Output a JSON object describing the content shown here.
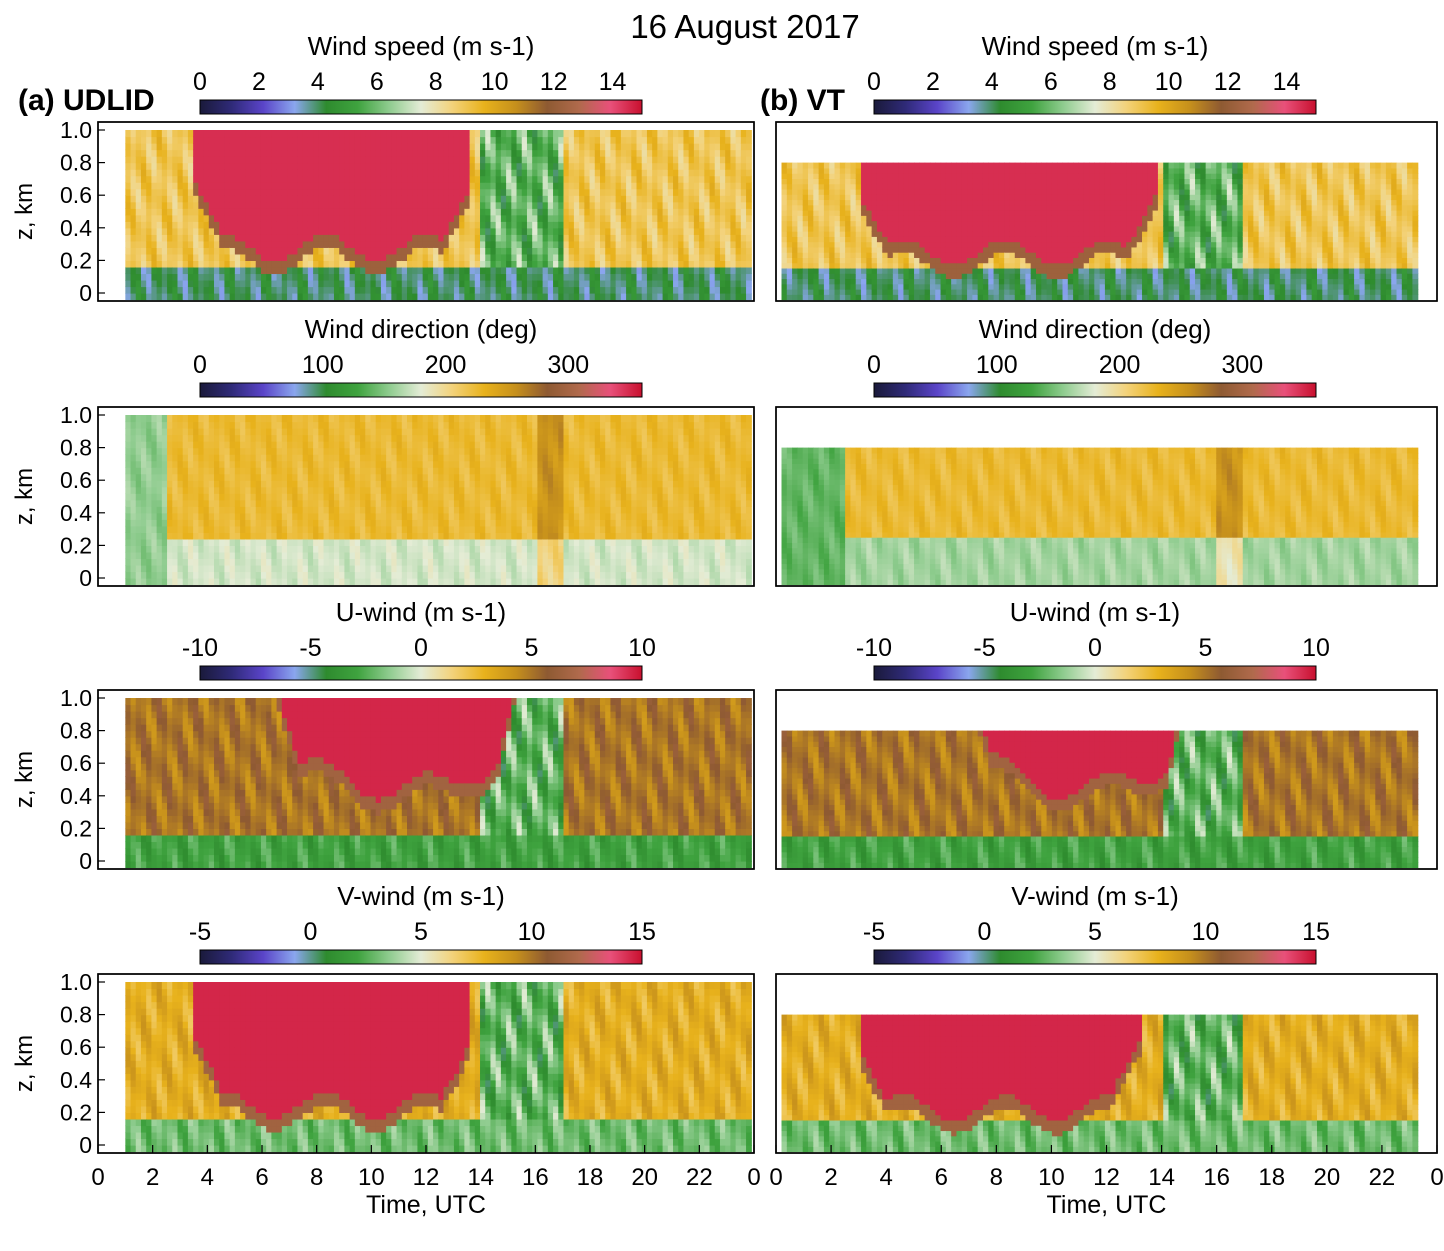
{
  "figure_title": "16 August 2017",
  "panel_labels": [
    "(a) UDLID",
    "(b) VT"
  ],
  "colorscale": [
    "#1a1a3a",
    "#2f2a78",
    "#5a44c8",
    "#8aa6ee",
    "#2e8b2e",
    "#3fa33f",
    "#8fcc8f",
    "#e4ecd6",
    "#f3d27a",
    "#e8b21c",
    "#c6901c",
    "#8e5a32",
    "#b06a4c",
    "#e8507a",
    "#c8102e"
  ],
  "chart_data": [
    {
      "type": "heatmap",
      "panel": "(a) UDLID",
      "variable": "Wind speed",
      "colorbar_label": "Wind speed (m s-1)",
      "colorbar_range": [
        0,
        15
      ],
      "colorbar_ticks": [
        "0",
        "2",
        "4",
        "6",
        "8",
        "10",
        "12",
        "14"
      ],
      "ylabel": "z, km",
      "yticks": [
        "1.0",
        "0.8",
        "0.6",
        "0.4",
        "0.2",
        "0"
      ],
      "ylim": [
        0,
        1.0
      ],
      "xlim": [
        0,
        24
      ],
      "data_xlim": [
        1,
        23.9
      ],
      "data_ztop": 1.0,
      "core": {
        "t_start": 3.5,
        "t_end": 13.6,
        "z_bottom": 0.28,
        "value": 14.5
      },
      "description_values": {
        "low_level_min": 4,
        "post_event_value": 9
      }
    },
    {
      "type": "heatmap",
      "panel": "(b) VT",
      "variable": "Wind speed",
      "colorbar_label": "Wind speed (m s-1)",
      "colorbar_range": [
        0,
        15
      ],
      "colorbar_ticks": [
        "0",
        "2",
        "4",
        "6",
        "8",
        "10",
        "12",
        "14"
      ],
      "ylim": [
        0,
        1.0
      ],
      "xlim": [
        0,
        24
      ],
      "data_xlim": [
        0.2,
        23.3
      ],
      "data_ztop": 0.8,
      "core": {
        "t_start": 3.0,
        "t_end": 13.8,
        "z_bottom": 0.25,
        "value": 14.5
      },
      "description_values": {
        "low_level_min": 4,
        "post_event_value": 9
      }
    },
    {
      "type": "heatmap",
      "panel": "(a) UDLID",
      "variable": "Wind direction",
      "colorbar_label": "Wind direction (deg)",
      "colorbar_range": [
        0,
        360
      ],
      "colorbar_ticks": [
        "0",
        "100",
        "200",
        "300"
      ],
      "ylabel": "z, km",
      "yticks": [
        "1.0",
        "0.8",
        "0.6",
        "0.4",
        "0.2",
        "0"
      ],
      "ylim": [
        0,
        1.0
      ],
      "xlim": [
        0,
        24
      ],
      "data_xlim": [
        1,
        23.9
      ],
      "data_ztop": 1.0,
      "description_values": {
        "low_level_value": 175,
        "upper_value": 225
      }
    },
    {
      "type": "heatmap",
      "panel": "(b) VT",
      "variable": "Wind direction",
      "colorbar_label": "Wind direction (deg)",
      "colorbar_range": [
        0,
        360
      ],
      "colorbar_ticks": [
        "0",
        "100",
        "200",
        "300"
      ],
      "ylim": [
        0,
        1.0
      ],
      "xlim": [
        0,
        24
      ],
      "data_xlim": [
        0.2,
        23.3
      ],
      "data_ztop": 0.8,
      "description_values": {
        "low_level_value": 160,
        "upper_value": 225
      }
    },
    {
      "type": "heatmap",
      "panel": "(a) UDLID",
      "variable": "U-wind",
      "colorbar_label": "U-wind (m s-1)",
      "colorbar_range": [
        -10,
        10
      ],
      "colorbar_ticks": [
        "-10",
        "-5",
        "0",
        "5",
        "10"
      ],
      "ylabel": "z, km",
      "yticks": [
        "1.0",
        "0.8",
        "0.6",
        "0.4",
        "0.2",
        "0"
      ],
      "ylim": [
        0,
        1.0
      ],
      "xlim": [
        0,
        24
      ],
      "data_xlim": [
        1,
        23.9
      ],
      "data_ztop": 1.0,
      "core": {
        "t_start": 6.5,
        "t_end": 15.5,
        "z_bottom": 0.45,
        "value": 9.5
      },
      "description_values": {
        "low_level_value": -3,
        "upper_value": 5
      }
    },
    {
      "type": "heatmap",
      "panel": "(b) VT",
      "variable": "U-wind",
      "colorbar_label": "U-wind (m s-1)",
      "colorbar_range": [
        -10,
        10
      ],
      "colorbar_ticks": [
        "-10",
        "-5",
        "0",
        "5",
        "10"
      ],
      "ylim": [
        0,
        1.0
      ],
      "xlim": [
        0,
        24
      ],
      "data_xlim": [
        0.2,
        23.3
      ],
      "data_ztop": 0.8,
      "core": {
        "t_start": 7.0,
        "t_end": 15.0,
        "z_bottom": 0.45,
        "value": 9.5
      },
      "description_values": {
        "low_level_value": -3,
        "upper_value": 5
      }
    },
    {
      "type": "heatmap",
      "panel": "(a) UDLID",
      "variable": "V-wind",
      "colorbar_label": "V-wind (m s-1)",
      "colorbar_range": [
        -5,
        15
      ],
      "colorbar_ticks": [
        "-5",
        "0",
        "5",
        "10",
        "15"
      ],
      "ylabel": "z, km",
      "xlabel": "Time, UTC",
      "yticks": [
        "1.0",
        "0.8",
        "0.6",
        "0.4",
        "0.2",
        "0"
      ],
      "xticks": [
        "0",
        "2",
        "4",
        "6",
        "8",
        "10",
        "12",
        "14",
        "16",
        "18",
        "20",
        "22",
        "0"
      ],
      "ylim": [
        0,
        1.0
      ],
      "xlim": [
        0,
        24
      ],
      "data_xlim": [
        1,
        23.9
      ],
      "data_ztop": 1.0,
      "core": {
        "t_start": 3.5,
        "t_end": 13.6,
        "z_bottom": 0.25,
        "value": 14.5
      },
      "description_values": {
        "low_level_value": 3,
        "post_event_value": 8
      }
    },
    {
      "type": "heatmap",
      "panel": "(b) VT",
      "variable": "V-wind",
      "colorbar_label": "V-wind (m s-1)",
      "colorbar_range": [
        -5,
        15
      ],
      "colorbar_ticks": [
        "-5",
        "0",
        "5",
        "10",
        "15"
      ],
      "xlabel": "Time, UTC",
      "xticks": [
        "0",
        "2",
        "4",
        "6",
        "8",
        "10",
        "12",
        "14",
        "16",
        "18",
        "20",
        "22",
        "0"
      ],
      "ylim": [
        0,
        1.0
      ],
      "xlim": [
        0,
        24
      ],
      "data_xlim": [
        0.2,
        23.3
      ],
      "data_ztop": 0.8,
      "core": {
        "t_start": 3.0,
        "t_end": 13.2,
        "z_bottom": 0.23,
        "value": 14.5
      },
      "description_values": {
        "low_level_value": 3,
        "post_event_value": 8
      }
    }
  ]
}
